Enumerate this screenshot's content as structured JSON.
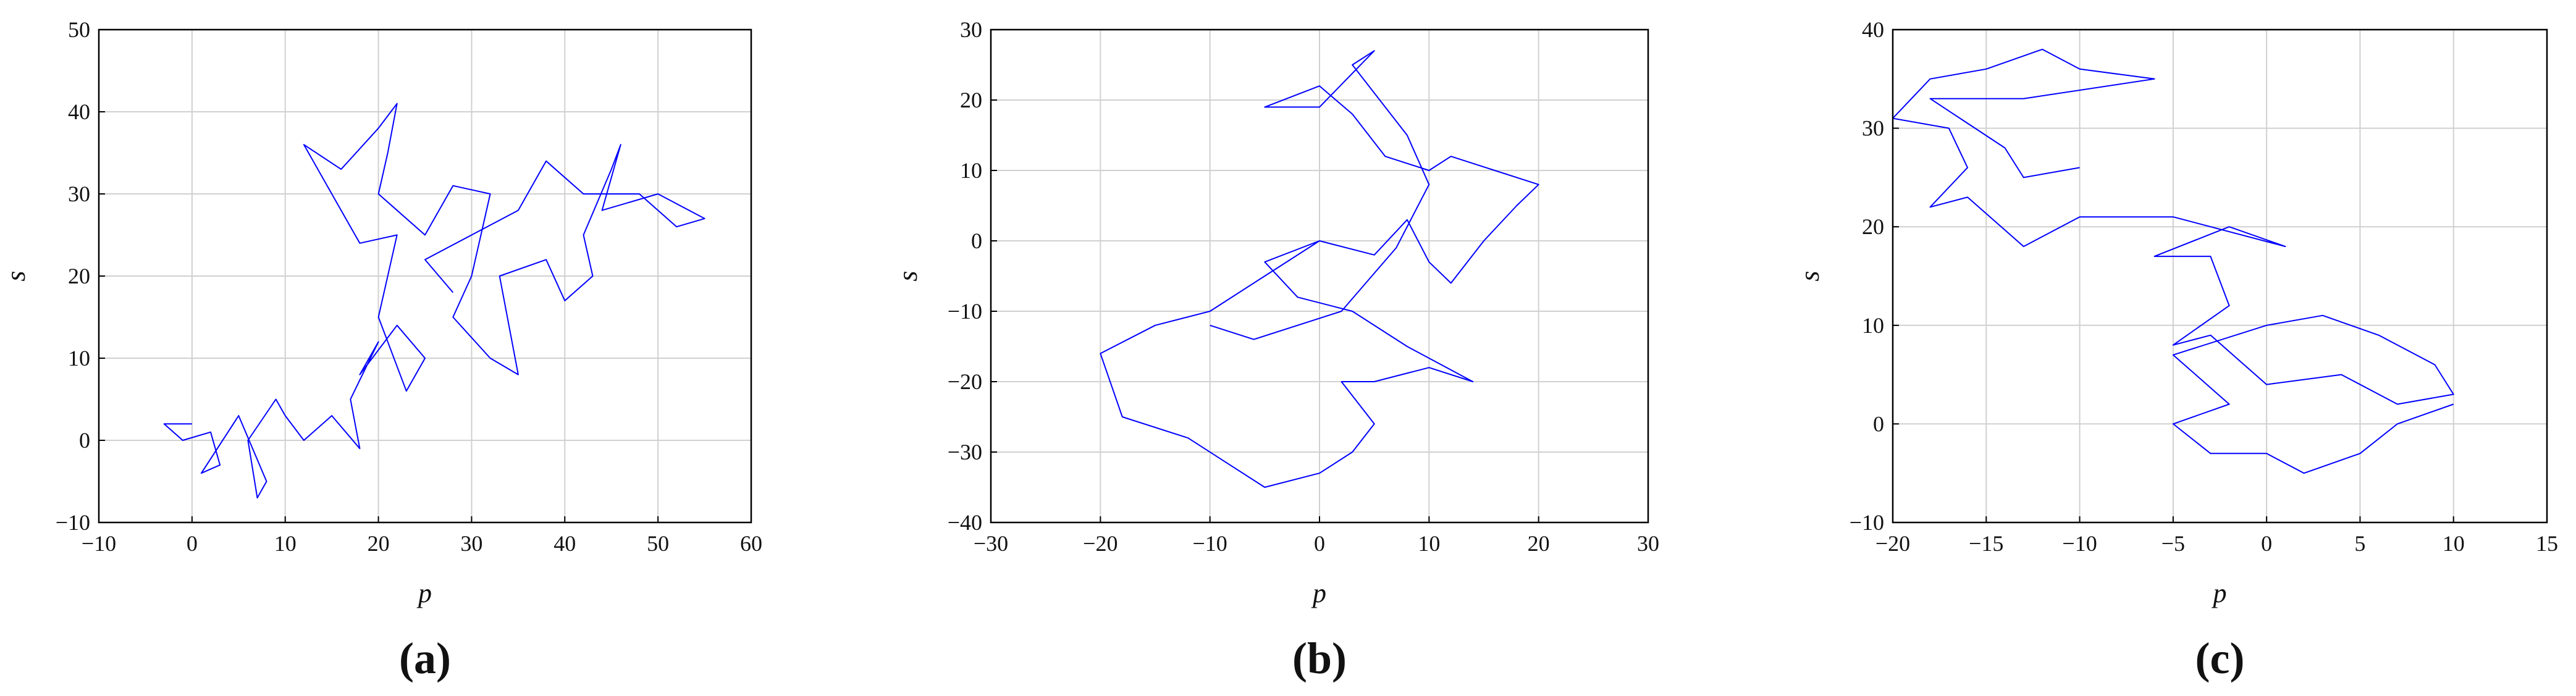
{
  "chart_data": [
    {
      "type": "line",
      "caption": "(a)",
      "xlabel": "p",
      "ylabel": "s",
      "color": "#0000ff",
      "grid": true,
      "xlim": [
        -10,
        60
      ],
      "ylim": [
        -10,
        50
      ],
      "xticks": [
        {
          "value": -10,
          "label": "−10"
        },
        0,
        10,
        20,
        30,
        40,
        50,
        60
      ],
      "yticks": [
        {
          "value": -10,
          "label": "−10"
        },
        0,
        10,
        20,
        30,
        40,
        50
      ],
      "x": [
        0,
        -3,
        -1,
        2,
        3,
        1,
        5,
        8,
        7,
        6,
        9,
        10,
        12,
        15,
        18,
        17,
        20,
        18,
        22,
        25,
        23,
        20,
        22,
        18,
        15,
        12,
        16,
        20,
        22,
        21,
        20,
        25,
        28,
        32,
        30,
        28,
        32,
        35,
        33,
        38,
        40,
        43,
        42,
        45,
        46,
        44,
        50,
        55,
        52,
        48,
        42,
        38,
        35,
        30,
        25,
        28
      ],
      "values": [
        2,
        2,
        0,
        1,
        -3,
        -4,
        3,
        -5,
        -7,
        0,
        5,
        3,
        0,
        3,
        -1,
        5,
        12,
        8,
        14,
        10,
        6,
        15,
        25,
        24,
        30,
        36,
        33,
        38,
        41,
        35,
        30,
        25,
        31,
        30,
        20,
        15,
        10,
        8,
        20,
        22,
        17,
        20,
        25,
        33,
        36,
        28,
        30,
        27,
        26,
        30,
        30,
        34,
        28,
        25,
        22,
        18
      ]
    },
    {
      "type": "line",
      "caption": "(b)",
      "xlabel": "p",
      "ylabel": "s",
      "color": "#0000ff",
      "grid": true,
      "xlim": [
        -30,
        30
      ],
      "ylim": [
        -40,
        30
      ],
      "xticks": [
        {
          "value": -30,
          "label": "−30"
        },
        {
          "value": -20,
          "label": "−20"
        },
        {
          "value": -10,
          "label": "−10"
        },
        0,
        10,
        20,
        30
      ],
      "yticks": [
        {
          "value": -40,
          "label": "−40"
        },
        {
          "value": -30,
          "label": "−30"
        },
        {
          "value": -20,
          "label": "−20"
        },
        {
          "value": -10,
          "label": "−10"
        },
        0,
        10,
        20,
        30
      ],
      "x": [
        0,
        -5,
        -10,
        -15,
        -20,
        -18,
        -12,
        -8,
        -5,
        0,
        3,
        5,
        2,
        5,
        10,
        14,
        8,
        3,
        -2,
        -5,
        0,
        5,
        8,
        10,
        12,
        15,
        18,
        20,
        16,
        12,
        10,
        6,
        3,
        0,
        -5,
        0,
        5,
        3,
        8,
        10,
        7,
        2,
        -6,
        -10
      ],
      "values": [
        0,
        -5,
        -10,
        -12,
        -16,
        -25,
        -28,
        -32,
        -35,
        -33,
        -30,
        -26,
        -20,
        -20,
        -18,
        -20,
        -15,
        -10,
        -8,
        -3,
        0,
        -2,
        3,
        -3,
        -6,
        0,
        5,
        8,
        10,
        12,
        10,
        12,
        18,
        22,
        19,
        19,
        27,
        25,
        15,
        8,
        -1,
        -10,
        -14,
        -12
      ]
    },
    {
      "type": "line",
      "caption": "(c)",
      "xlabel": "p",
      "ylabel": "s",
      "color": "#0000ff",
      "grid": true,
      "xlim": [
        -20,
        15
      ],
      "ylim": [
        -10,
        40
      ],
      "xticks": [
        {
          "value": -20,
          "label": "−20"
        },
        {
          "value": -15,
          "label": "−15"
        },
        {
          "value": -10,
          "label": "−10"
        },
        {
          "value": -5,
          "label": "−5"
        },
        0,
        5,
        10,
        15
      ],
      "yticks": [
        {
          "value": -10,
          "label": "−10"
        },
        0,
        10,
        20,
        30,
        40
      ],
      "x": [
        10,
        7,
        5,
        2,
        0,
        -3,
        -5,
        -2,
        -5,
        0,
        3,
        6,
        9,
        10,
        7,
        4,
        0,
        -3,
        -5,
        -2,
        -3,
        -6,
        -2,
        1,
        -5,
        -10,
        -13,
        -16,
        -18,
        -16,
        -17,
        -20,
        -18,
        -15,
        -12,
        -10,
        -6,
        -13,
        -18,
        -14,
        -13,
        -10
      ],
      "values": [
        2,
        0,
        -3,
        -5,
        -3,
        -3,
        0,
        2,
        7,
        10,
        11,
        9,
        6,
        3,
        2,
        5,
        4,
        9,
        8,
        12,
        17,
        17,
        20,
        18,
        21,
        21,
        18,
        23,
        22,
        26,
        30,
        31,
        35,
        36,
        38,
        36,
        35,
        33,
        33,
        28,
        25,
        26
      ]
    }
  ]
}
